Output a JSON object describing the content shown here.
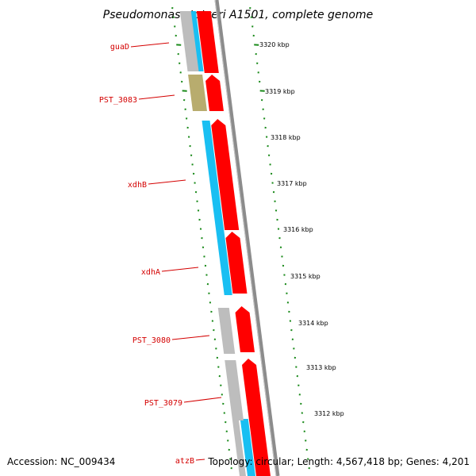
{
  "title": "Pseudomonas stutzeri A1501, complete genome",
  "footer": {
    "accession": "Accession: NC_009434",
    "summary": "Topology: circular; Length: 4,567,418 bp; Genes: 4,201"
  },
  "scale_labels": [
    "3320 kbp",
    "3319 kbp",
    "3318 kbp",
    "3317 kbp",
    "3316 kbp",
    "3315 kbp",
    "3314 kbp",
    "3313 kbp",
    "3312 kbp"
  ],
  "gene_labels": [
    "guaD",
    "PST_3083",
    "xdhB",
    "xdhA",
    "PST_3080",
    "PST_3079",
    "atzB"
  ],
  "colors": {
    "cds_red": "#ff0000",
    "gene_cyan": "#19bff2",
    "gene_gray": "#bdbdbd",
    "gene_olive": "#b8ac6e",
    "backbone": "#8c8c8c",
    "tick_green": "#1a8a1a",
    "label_red": "#d40000"
  }
}
